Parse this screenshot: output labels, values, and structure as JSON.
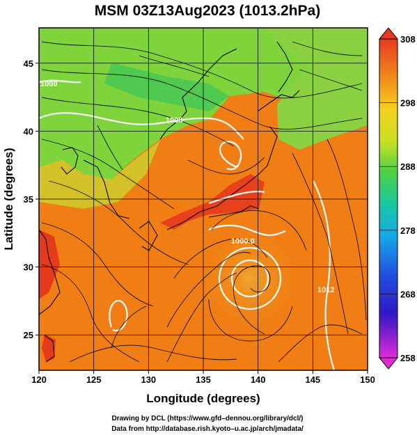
{
  "title": "MSM 03Z13Aug2023 (1013.2hPa)",
  "xlabel": "Longitude (degrees)",
  "ylabel": "Latitude  (degrees)",
  "x_ticks": [
    "120",
    "125",
    "130",
    "135",
    "140",
    "145",
    "150"
  ],
  "y_ticks": [
    "25",
    "30",
    "35",
    "40",
    "45"
  ],
  "colorbar_ticks": [
    "308",
    "298",
    "288",
    "278",
    "268",
    "258"
  ],
  "contour_labels": [
    "1000.0",
    "1008",
    "1000",
    "1012"
  ],
  "credit_line1": "Drawing by DCL (https://www.gfd–dennou.org/library/dcl/)",
  "credit_line2": "Data from http://database.rish.kyoto–u.ac.jp/arch/jmadata/",
  "colors": {
    "warm": "#f07a10",
    "hot": "#e8321a",
    "mild": "#f5a21e",
    "cool": "#8ad83a",
    "cold": "#2ec060"
  },
  "chart_data": {
    "type": "heatmap",
    "title": "MSM 03Z13Aug2023 (1013.2hPa)",
    "xlabel": "Longitude (degrees)",
    "ylabel": "Latitude  (degrees)",
    "xlim": [
      120,
      150
    ],
    "ylim": [
      22.4,
      47.6
    ],
    "colorbar_range": [
      258,
      308
    ],
    "colorbar_ticks": [
      308,
      298,
      288,
      278,
      268,
      258
    ],
    "typhoon_center": {
      "lon": 139.4,
      "lat": 30.0
    },
    "gridlines": true
  }
}
